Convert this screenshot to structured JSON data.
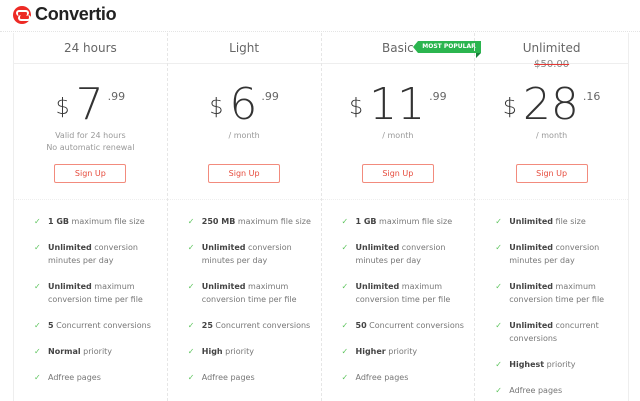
{
  "brand": {
    "name": "Convertio",
    "color": "#ed2a25"
  },
  "accent": {
    "button": "#e64b3c",
    "check": "#5cc45c",
    "badge": "#2bb54f"
  },
  "plans": [
    {
      "name": "24 hours",
      "currency": "$",
      "price": "7",
      "cents": ".99",
      "note1": "Valid for 24 hours",
      "note2": "No automatic renewal",
      "button": "Sign Up",
      "features": [
        [
          "1 GB",
          " maximum file size"
        ],
        [
          "Unlimited",
          " conversion minutes per day"
        ],
        [
          "Unlimited",
          " maximum conversion time per file"
        ],
        [
          "5",
          " Concurrent conversions"
        ],
        [
          "Normal",
          " priority"
        ],
        [
          "",
          "Adfree pages"
        ]
      ]
    },
    {
      "name": "Light",
      "currency": "$",
      "price": "6",
      "cents": ".99",
      "note1": "/ month",
      "button": "Sign Up",
      "features": [
        [
          "250 MB",
          " maximum file size"
        ],
        [
          "Unlimited",
          " conversion minutes per day"
        ],
        [
          "Unlimited",
          " maximum conversion time per file"
        ],
        [
          "25",
          " Concurrent conversions"
        ],
        [
          "High",
          " priority"
        ],
        [
          "",
          "Adfree pages"
        ]
      ]
    },
    {
      "name": "Basic",
      "badge": "MOST POPULAR",
      "currency": "$",
      "price": "11",
      "cents": ".99",
      "note1": "/ month",
      "button": "Sign Up",
      "features": [
        [
          "1 GB",
          " maximum file size"
        ],
        [
          "Unlimited",
          " conversion minutes per day"
        ],
        [
          "Unlimited",
          " maximum conversion time per file"
        ],
        [
          "50",
          " Concurrent conversions"
        ],
        [
          "Higher",
          " priority"
        ],
        [
          "",
          "Adfree pages"
        ]
      ]
    },
    {
      "name": "Unlimited",
      "old_price": "$50.00",
      "currency": "$",
      "price": "28",
      "cents": ".16",
      "note1": "/ month",
      "button": "Sign Up",
      "features": [
        [
          "Unlimited",
          " file size"
        ],
        [
          "Unlimited",
          " conversion minutes per day"
        ],
        [
          "Unlimited",
          " maximum conversion time per file"
        ],
        [
          "Unlimited",
          " concurrent conversions"
        ],
        [
          "Highest",
          " priority"
        ],
        [
          "",
          "Adfree pages"
        ]
      ]
    }
  ]
}
